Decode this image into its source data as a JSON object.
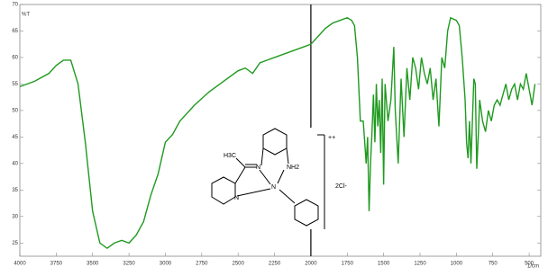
{
  "chart_data": {
    "type": "line",
    "x_label": "1/cm",
    "y_label": "%T",
    "xlim": [
      4000,
      420
    ],
    "ylim": [
      22.5,
      70
    ],
    "xticks": [
      4000,
      3750,
      3500,
      3250,
      3000,
      2750,
      2500,
      2250,
      2000,
      1750,
      1500,
      1250,
      1000,
      750,
      500
    ],
    "yticks": [
      25,
      30,
      35,
      40,
      45,
      50,
      55,
      60,
      65,
      70
    ],
    "vline": 2000,
    "vline_color": "#000000",
    "series": [
      {
        "color": "#1f9a1f",
        "x": [
          4000,
          3900,
          3800,
          3750,
          3700,
          3650,
          3600,
          3550,
          3500,
          3450,
          3400,
          3350,
          3300,
          3250,
          3200,
          3150,
          3100,
          3050,
          3000,
          2950,
          2900,
          2800,
          2700,
          2600,
          2500,
          2450,
          2400,
          2350,
          2300,
          2250,
          2150,
          2050,
          2000,
          1950,
          1900,
          1850,
          1800,
          1750,
          1720,
          1700,
          1680,
          1660,
          1640,
          1630,
          1620,
          1610,
          1600,
          1590,
          1580,
          1570,
          1560,
          1550,
          1540,
          1530,
          1520,
          1510,
          1500,
          1490,
          1470,
          1450,
          1430,
          1420,
          1400,
          1380,
          1360,
          1340,
          1320,
          1300,
          1280,
          1260,
          1240,
          1220,
          1200,
          1180,
          1160,
          1140,
          1120,
          1100,
          1080,
          1060,
          1040,
          1000,
          980,
          960,
          940,
          930,
          920,
          910,
          900,
          880,
          870,
          860,
          850,
          840,
          820,
          800,
          780,
          760,
          740,
          720,
          700,
          680,
          660,
          640,
          620,
          600,
          580,
          560,
          540,
          520,
          500,
          480,
          460
        ],
        "values": [
          54.5,
          55.5,
          57,
          58.5,
          59.5,
          59.5,
          55,
          44,
          31,
          25,
          24,
          25,
          25.5,
          25,
          26.5,
          29,
          34,
          38,
          44,
          45.5,
          48,
          51,
          53.5,
          55.5,
          57.5,
          58,
          57,
          59,
          59.5,
          60,
          61,
          62,
          62.5,
          64,
          65.5,
          66.5,
          67,
          67.5,
          67,
          66,
          60,
          48,
          48,
          44,
          40,
          45,
          31,
          40,
          46,
          53,
          44,
          55,
          47,
          52,
          42,
          56,
          36,
          55,
          48,
          52,
          62,
          50,
          40,
          56,
          45,
          58,
          52,
          60,
          58,
          54,
          60,
          57,
          55,
          58,
          52,
          56,
          47,
          60,
          58,
          65,
          67.5,
          67,
          66,
          60,
          52,
          44,
          41,
          48,
          40,
          56,
          55,
          39,
          45,
          52,
          48,
          46,
          50,
          48,
          51,
          52,
          51,
          53,
          55,
          52,
          54,
          55,
          52,
          55,
          54,
          57,
          54,
          51,
          55
        ]
      }
    ],
    "annotations": [
      "H3C",
      "N",
      "NH2",
      "N",
      "N",
      "++",
      "2Cl-"
    ]
  }
}
